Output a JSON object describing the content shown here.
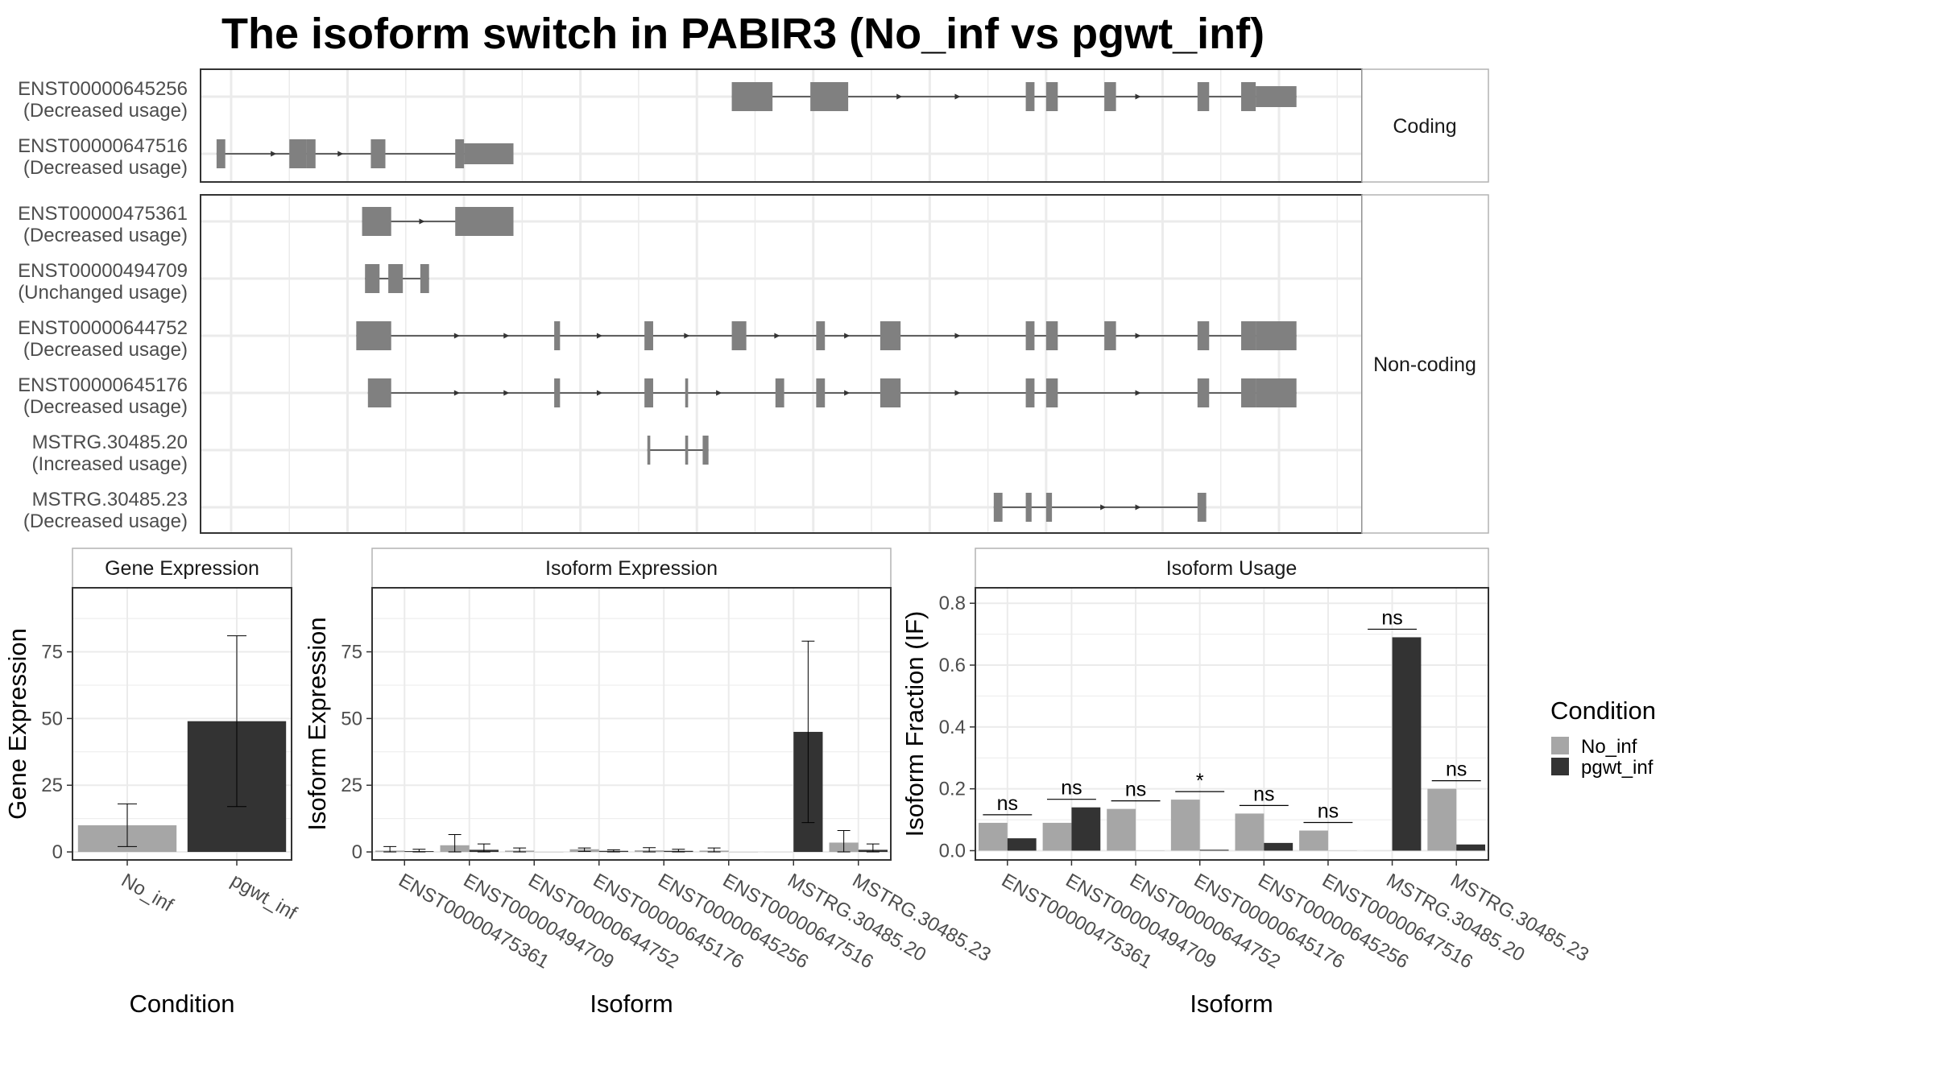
{
  "title": "The isoform switch in PABIR3 (No_inf vs pgwt_inf)",
  "colors": {
    "No_inf": "#a6a6a6",
    "pgwt_inf": "#333333",
    "exon": "#808080",
    "intron": "#333333",
    "grid": "#ebebeb",
    "strip_bg": "#ffffff",
    "strip_border": "#b3b3b3"
  },
  "chart_data": [
    {
      "type": "gene-structure",
      "panels": [
        {
          "name": "Coding",
          "transcripts": [
            {
              "id": "ENST00000645256",
              "usage": "(Decreased usage)",
              "exons": [
                [
                  632,
                  646
                ],
                [
                  659,
                  672
                ],
                [
                  733,
                  736
                ],
                [
                  740,
                  744
                ],
                [
                  760,
                  764
                ],
                [
                  792,
                  796
                ],
                [
                  807,
                  812
                ],
                [
                  812,
                  826
                ]
              ],
              "cds_end": 812,
              "arrows": [
                690,
                710,
                772
              ]
            },
            {
              "id": "ENST00000647516",
              "usage": "(Decreased usage)",
              "exons": [
                [
                  455,
                  458
                ],
                [
                  480,
                  486
                ],
                [
                  486,
                  489
                ],
                [
                  508,
                  513
                ],
                [
                  537,
                  540
                ],
                [
                  540,
                  557
                ]
              ],
              "cds_end": 540,
              "arrows": [
                475,
                498
              ]
            }
          ]
        },
        {
          "name": "Non-coding",
          "transcripts": [
            {
              "id": "ENST00000475361",
              "usage": "(Decreased usage)",
              "exons": [
                [
                  505,
                  515
                ],
                [
                  537,
                  557
                ]
              ],
              "arrows": [
                526
              ]
            },
            {
              "id": "ENST00000494709",
              "usage": "(Unchanged usage)",
              "exons": [
                [
                  506,
                  511
                ],
                [
                  514,
                  519
                ],
                [
                  525,
                  528
                ]
              ],
              "arrows": []
            },
            {
              "id": "ENST00000644752",
              "usage": "(Decreased usage)",
              "exons": [
                [
                  503,
                  515
                ],
                [
                  571,
                  573
                ],
                [
                  602,
                  605
                ],
                [
                  632,
                  637
                ],
                [
                  661,
                  664
                ],
                [
                  683,
                  690
                ],
                [
                  733,
                  736
                ],
                [
                  740,
                  744
                ],
                [
                  760,
                  764
                ],
                [
                  792,
                  796
                ],
                [
                  807,
                  812
                ],
                [
                  812,
                  826
                ]
              ],
              "arrows": [
                538,
                555,
                587,
                617,
                648,
                672,
                710,
                772
              ]
            },
            {
              "id": "ENST00000645176",
              "usage": "(Decreased usage)",
              "exons": [
                [
                  507,
                  515
                ],
                [
                  571,
                  573
                ],
                [
                  602,
                  605
                ],
                [
                  616,
                  617
                ],
                [
                  647,
                  650
                ],
                [
                  661,
                  664
                ],
                [
                  683,
                  690
                ],
                [
                  733,
                  736
                ],
                [
                  740,
                  744
                ],
                [
                  792,
                  796
                ],
                [
                  807,
                  812
                ],
                [
                  812,
                  826
                ]
              ],
              "arrows": [
                538,
                555,
                587,
                628,
                672,
                710,
                772
              ]
            },
            {
              "id": "MSTRG.30485.20",
              "usage": "(Increased usage)",
              "exons": [
                [
                  603,
                  604
                ],
                [
                  616,
                  617
                ],
                [
                  622,
                  624
                ]
              ],
              "arrows": []
            },
            {
              "id": "MSTRG.30485.23",
              "usage": "(Decreased usage)",
              "exons": [
                [
                  722,
                  725
                ],
                [
                  733,
                  735
                ],
                [
                  740,
                  742
                ],
                [
                  792,
                  795
                ]
              ],
              "arrows": [
                760,
                772
              ]
            }
          ]
        }
      ]
    },
    {
      "type": "bar",
      "title": "Gene Expression",
      "xlabel": "Condition",
      "ylabel": "Gene Expression",
      "categories": [
        "No_inf",
        "pgwt_inf"
      ],
      "values": [
        10,
        49
      ],
      "error_low": [
        2,
        17
      ],
      "error_high": [
        18,
        81
      ],
      "ylim": [
        -3,
        99
      ],
      "yticks": [
        0,
        25,
        50,
        75
      ]
    },
    {
      "type": "bar",
      "title": "Isoform Expression",
      "xlabel": "Isoform",
      "ylabel": "Isoform Expression",
      "ylim": [
        -3,
        99
      ],
      "yticks": [
        0,
        25,
        50,
        75
      ],
      "categories": [
        "ENST00000475361",
        "ENST00000494709",
        "ENST00000644752",
        "ENST00000645176",
        "ENST00000645256",
        "ENST00000647516",
        "MSTRG.30485.20",
        "MSTRG.30485.23"
      ],
      "series": [
        {
          "name": "No_inf",
          "values": [
            0.5,
            2.5,
            0.5,
            1,
            0.6,
            0.5,
            0,
            3.5
          ],
          "error_low": [
            0,
            0,
            0,
            0.2,
            0,
            0,
            0,
            0
          ],
          "error_high": [
            2,
            6.5,
            1.5,
            1.5,
            1.6,
            1.5,
            0,
            8
          ]
        },
        {
          "name": "pgwt_inf",
          "values": [
            0.3,
            0.8,
            0,
            0.4,
            0.4,
            0,
            45,
            0.8
          ],
          "error_low": [
            0,
            0,
            0,
            0,
            0,
            0,
            11,
            0
          ],
          "error_high": [
            1,
            3,
            0,
            0.8,
            1,
            0,
            79,
            3
          ]
        }
      ]
    },
    {
      "type": "bar",
      "title": "Isoform Usage",
      "xlabel": "Isoform",
      "ylabel": "Isoform Fraction (IF)",
      "ylim": [
        -0.03,
        0.85
      ],
      "yticks": [
        0.0,
        0.2,
        0.4,
        0.6,
        0.8
      ],
      "ytick_labels": [
        "0.0",
        "0.2",
        "0.4",
        "0.6",
        "0.8"
      ],
      "categories": [
        "ENST00000475361",
        "ENST00000494709",
        "ENST00000644752",
        "ENST00000645176",
        "ENST00000645256",
        "ENST00000647516",
        "MSTRG.30485.20",
        "MSTRG.30485.23"
      ],
      "series": [
        {
          "name": "No_inf",
          "values": [
            0.09,
            0.09,
            0.135,
            0.165,
            0.12,
            0.065,
            0,
            0.2
          ]
        },
        {
          "name": "pgwt_inf",
          "values": [
            0.04,
            0.14,
            0,
            0.003,
            0.025,
            0,
            0.69,
            0.02
          ]
        }
      ],
      "significance": [
        "ns",
        "ns",
        "ns",
        "*",
        "ns",
        "ns",
        "ns",
        "ns"
      ]
    }
  ],
  "legend": {
    "title": "Condition",
    "entries": [
      "No_inf",
      "pgwt_inf"
    ]
  }
}
